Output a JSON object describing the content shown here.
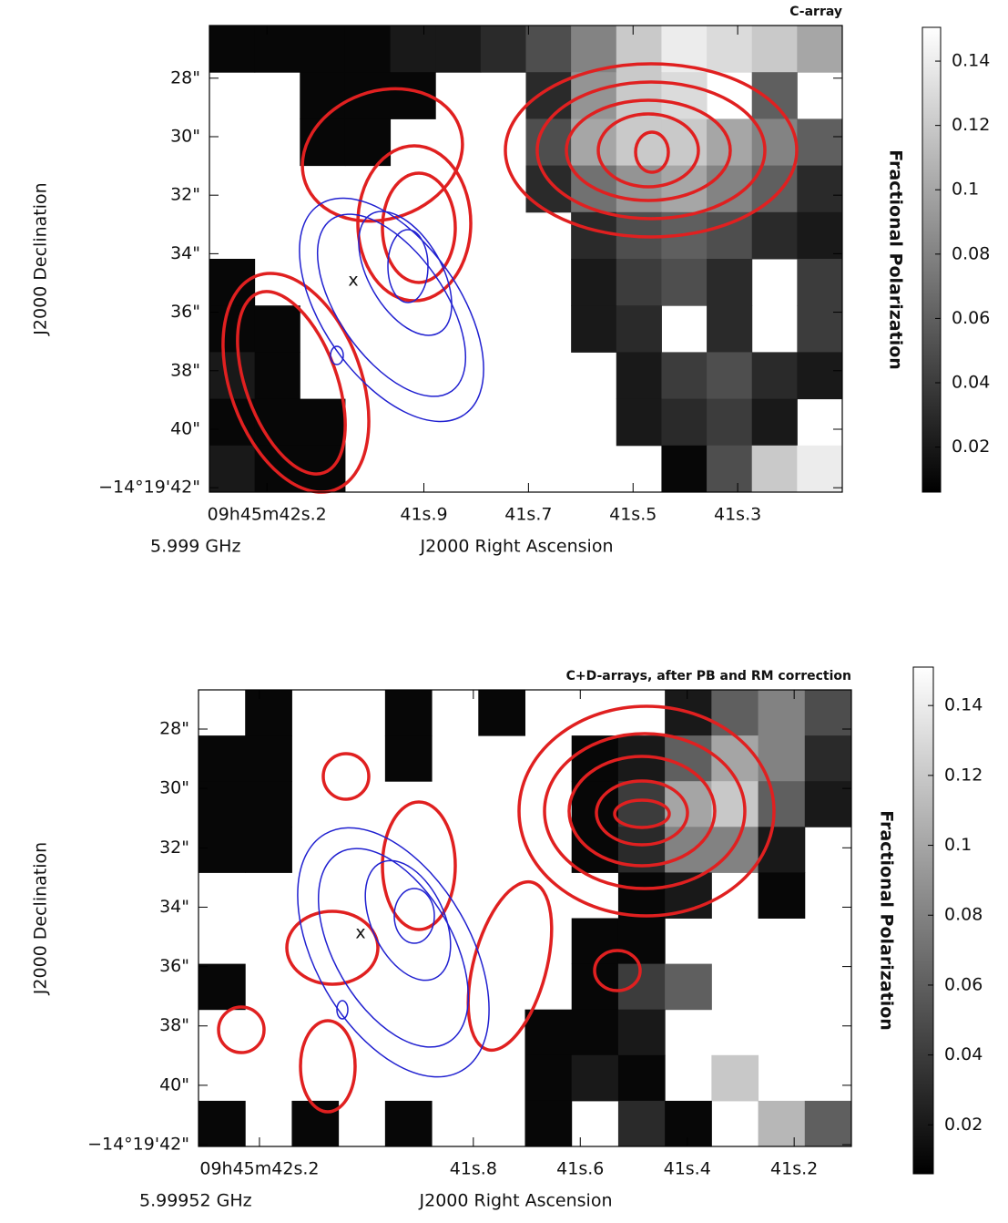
{
  "chart_data": [
    {
      "type": "image",
      "title": "C-array",
      "xlabel": "J2000 Right Ascension",
      "ylabel": "J2000 Declination",
      "freq_label": "5.999 GHz",
      "marker_label": "x",
      "xlim": [
        42.31,
        41.1
      ],
      "ylim": [
        42.15,
        26.2
      ],
      "xticks": [
        {
          "value": 42.2,
          "label": "09h45m42s.2"
        },
        {
          "value": 41.9,
          "label": "41s.9"
        },
        {
          "value": 41.7,
          "label": "41s.7"
        },
        {
          "value": 41.5,
          "label": "41s.5"
        },
        {
          "value": 41.3,
          "label": "41s.3"
        }
      ],
      "yticks": [
        {
          "value": 28,
          "label": "28\""
        },
        {
          "value": 30,
          "label": "30\""
        },
        {
          "value": 32,
          "label": "32\""
        },
        {
          "value": 34,
          "label": "34\""
        },
        {
          "value": 36,
          "label": "36\""
        },
        {
          "value": 38,
          "label": "38\""
        },
        {
          "value": 40,
          "label": "40\""
        },
        {
          "value": 42,
          "label": "−14°19'42\""
        }
      ],
      "z": [
        [
          0.01,
          0.01,
          0.01,
          0.01,
          0.02,
          0.02,
          0.03,
          0.05,
          0.08,
          0.12,
          0.14,
          0.13,
          0.12,
          0.1
        ],
        [
          null,
          null,
          0.01,
          0.01,
          0.01,
          null,
          null,
          0.03,
          0.09,
          0.12,
          0.13,
          null,
          0.06,
          null
        ],
        [
          null,
          null,
          0.01,
          0.01,
          null,
          null,
          null,
          0.05,
          0.1,
          0.12,
          0.12,
          0.1,
          0.08,
          0.06
        ],
        [
          null,
          null,
          null,
          null,
          null,
          null,
          null,
          0.03,
          0.07,
          0.09,
          0.1,
          0.08,
          0.06,
          0.03
        ],
        [
          null,
          null,
          null,
          null,
          null,
          null,
          null,
          null,
          0.03,
          0.05,
          0.06,
          0.05,
          0.03,
          0.02
        ],
        [
          0.01,
          null,
          null,
          null,
          null,
          null,
          null,
          null,
          0.02,
          0.04,
          0.05,
          0.03,
          null,
          0.04
        ],
        [
          0.01,
          0.01,
          null,
          null,
          null,
          null,
          null,
          null,
          0.02,
          0.03,
          null,
          0.03,
          null,
          0.04
        ],
        [
          0.02,
          0.01,
          null,
          null,
          null,
          null,
          null,
          null,
          null,
          0.02,
          0.04,
          0.05,
          0.03,
          0.02
        ],
        [
          0.01,
          0.01,
          0.01,
          null,
          null,
          null,
          null,
          null,
          null,
          0.02,
          0.03,
          0.04,
          0.02,
          null
        ],
        [
          0.02,
          0.01,
          0.01,
          null,
          null,
          null,
          null,
          null,
          null,
          null,
          0.01,
          0.05,
          0.12,
          0.14
        ]
      ],
      "colorbar": {
        "label": "Fractional Polarization",
        "clim": [
          0.006,
          0.1505
        ],
        "ticks": [
          0.02,
          0.04,
          0.06,
          0.08,
          0.1,
          0.12,
          0.14
        ]
      }
    },
    {
      "type": "image",
      "title": "C+D-arrays, after PB and RM correction",
      "xlabel": "J2000 Right Ascension",
      "ylabel": "J2000 Declination",
      "freq_label": "5.99952 GHz",
      "marker_label": "x",
      "xlim": [
        42.314,
        41.093
      ],
      "ylim": [
        42.06,
        26.68
      ],
      "xticks": [
        {
          "value": 42.2,
          "label": "09h45m42s.2"
        },
        {
          "value": 41.8,
          "label": "41s.8"
        },
        {
          "value": 41.6,
          "label": "41s.6"
        },
        {
          "value": 41.4,
          "label": "41s.4"
        },
        {
          "value": 41.2,
          "label": "41s.2"
        }
      ],
      "yticks": [
        {
          "value": 28,
          "label": "28\""
        },
        {
          "value": 30,
          "label": "30\""
        },
        {
          "value": 32,
          "label": "32\""
        },
        {
          "value": 34,
          "label": "34\""
        },
        {
          "value": 36,
          "label": "36\""
        },
        {
          "value": 38,
          "label": "38\""
        },
        {
          "value": 40,
          "label": "40\""
        },
        {
          "value": 42,
          "label": "−14°19'42\""
        }
      ],
      "z": [
        [
          null,
          0.01,
          null,
          null,
          0.01,
          null,
          0.01,
          null,
          null,
          null,
          0.02,
          0.06,
          0.08,
          0.05
        ],
        [
          0.01,
          0.01,
          null,
          null,
          0.01,
          null,
          null,
          null,
          0.01,
          0.02,
          0.06,
          0.1,
          0.08,
          0.03
        ],
        [
          0.01,
          0.01,
          null,
          null,
          null,
          null,
          null,
          null,
          0.01,
          0.04,
          0.1,
          0.12,
          0.06,
          0.02
        ],
        [
          0.01,
          0.01,
          null,
          null,
          null,
          null,
          null,
          null,
          0.01,
          0.03,
          0.08,
          0.08,
          0.02,
          null
        ],
        [
          null,
          null,
          null,
          null,
          null,
          null,
          null,
          null,
          null,
          0.01,
          0.02,
          null,
          0.01,
          null
        ],
        [
          null,
          null,
          null,
          null,
          null,
          null,
          null,
          null,
          0.01,
          0.01,
          null,
          null,
          null,
          null
        ],
        [
          0.01,
          null,
          null,
          null,
          null,
          null,
          null,
          null,
          0.01,
          0.04,
          0.06,
          null,
          null,
          null
        ],
        [
          null,
          null,
          null,
          null,
          null,
          null,
          null,
          0.01,
          0.01,
          0.02,
          null,
          null,
          null,
          null
        ],
        [
          null,
          null,
          null,
          null,
          null,
          null,
          null,
          0.01,
          0.02,
          0.01,
          null,
          0.12,
          null,
          null
        ],
        [
          0.01,
          null,
          0.01,
          null,
          0.01,
          null,
          null,
          0.01,
          null,
          0.03,
          0.01,
          null,
          0.11,
          0.06
        ]
      ],
      "colorbar": {
        "label": "Fractional Polarization",
        "clim": [
          0.006,
          0.151
        ],
        "ticks": [
          0.02,
          0.04,
          0.06,
          0.08,
          0.1,
          0.12,
          0.14
        ]
      }
    }
  ]
}
